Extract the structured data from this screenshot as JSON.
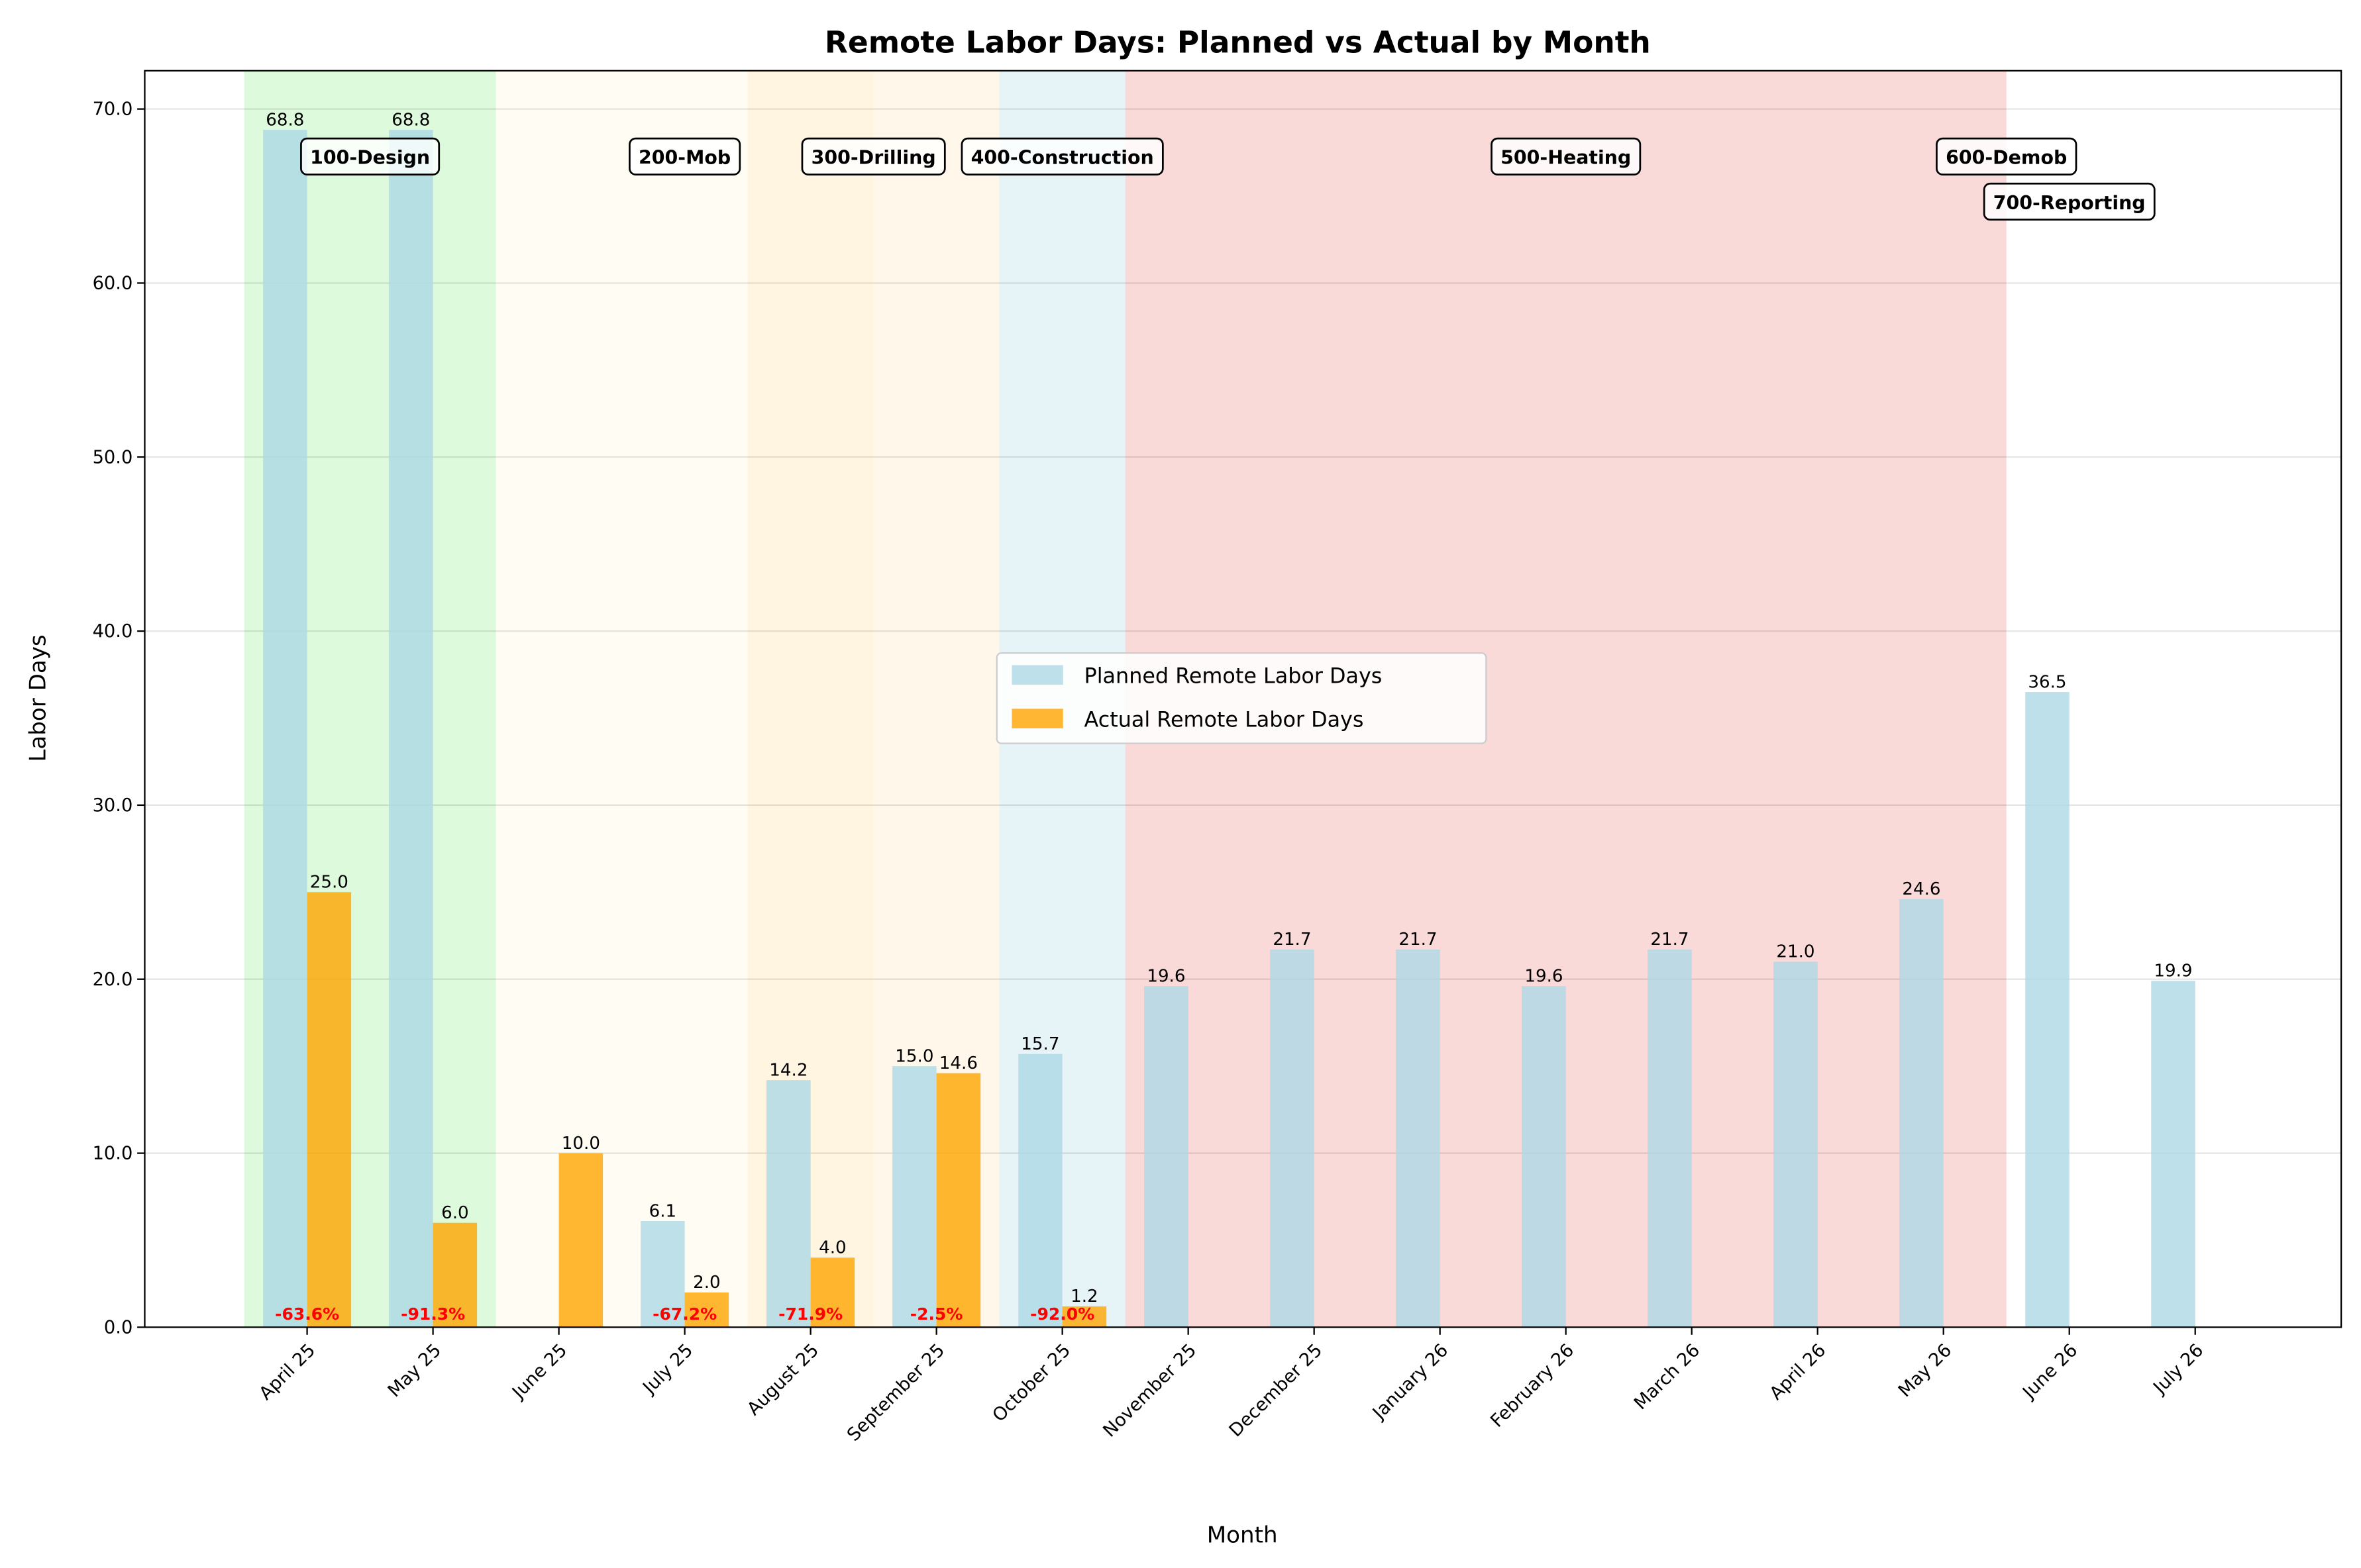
{
  "chart_data": {
    "type": "bar",
    "title": "Remote Labor Days: Planned vs Actual by Month",
    "xlabel": "Month",
    "ylabel": "Labor Days",
    "ylim": [
      0,
      72.2
    ],
    "yticks": [
      0,
      10,
      20,
      30,
      40,
      50,
      60,
      70
    ],
    "ytick_labels": [
      "0.0",
      "10.0",
      "20.0",
      "30.0",
      "40.0",
      "50.0",
      "60.0",
      "70.0"
    ],
    "grid": true,
    "legend_position": "center",
    "categories": [
      "April 25",
      "May 25",
      "June 25",
      "July 25",
      "August 25",
      "September 25",
      "October 25",
      "November 25",
      "December 25",
      "January 26",
      "February 26",
      "March 26",
      "April 26",
      "May 26",
      "June 26",
      "July 26"
    ],
    "series": [
      {
        "name": "Planned Remote Labor Days",
        "color": "#ADD8E6",
        "values": [
          68.8,
          68.8,
          null,
          6.1,
          14.2,
          15.0,
          15.7,
          19.6,
          21.7,
          21.7,
          19.6,
          21.7,
          21.0,
          24.6,
          36.5,
          19.9
        ]
      },
      {
        "name": "Actual Remote Labor Days",
        "color": "#FFA500",
        "values": [
          25.0,
          6.0,
          10.0,
          2.0,
          4.0,
          14.6,
          1.2,
          null,
          null,
          null,
          null,
          null,
          null,
          null,
          null,
          null
        ]
      }
    ],
    "variance_labels": [
      "-63.6%",
      "-91.3%",
      null,
      "-67.2%",
      "-71.9%",
      "-2.5%",
      "-92.0%",
      null,
      null,
      null,
      null,
      null,
      null,
      null,
      null,
      null
    ],
    "phases": [
      {
        "name": "100-Design",
        "start": -0.5,
        "end": 1.5,
        "color": "#90EE90"
      },
      {
        "name": "200-Mob",
        "start": 1.5,
        "end": 4.5,
        "color": "#FFF8DC"
      },
      {
        "name": "300-Drilling",
        "start": 3.5,
        "end": 5.5,
        "color": "#FFE4B5"
      },
      {
        "name": "400-Construction",
        "start": 5.5,
        "end": 6.5,
        "color": "#ADD8E6"
      },
      {
        "name": "500-Heating",
        "start": 6.5,
        "end": 13.5,
        "color": "#F08080"
      },
      {
        "name": "600-Demob",
        "start": 13.5,
        "end": 13.5,
        "color": null
      },
      {
        "name": "700-Reporting",
        "start": 14.0,
        "end": 14.0,
        "color": null
      }
    ]
  }
}
